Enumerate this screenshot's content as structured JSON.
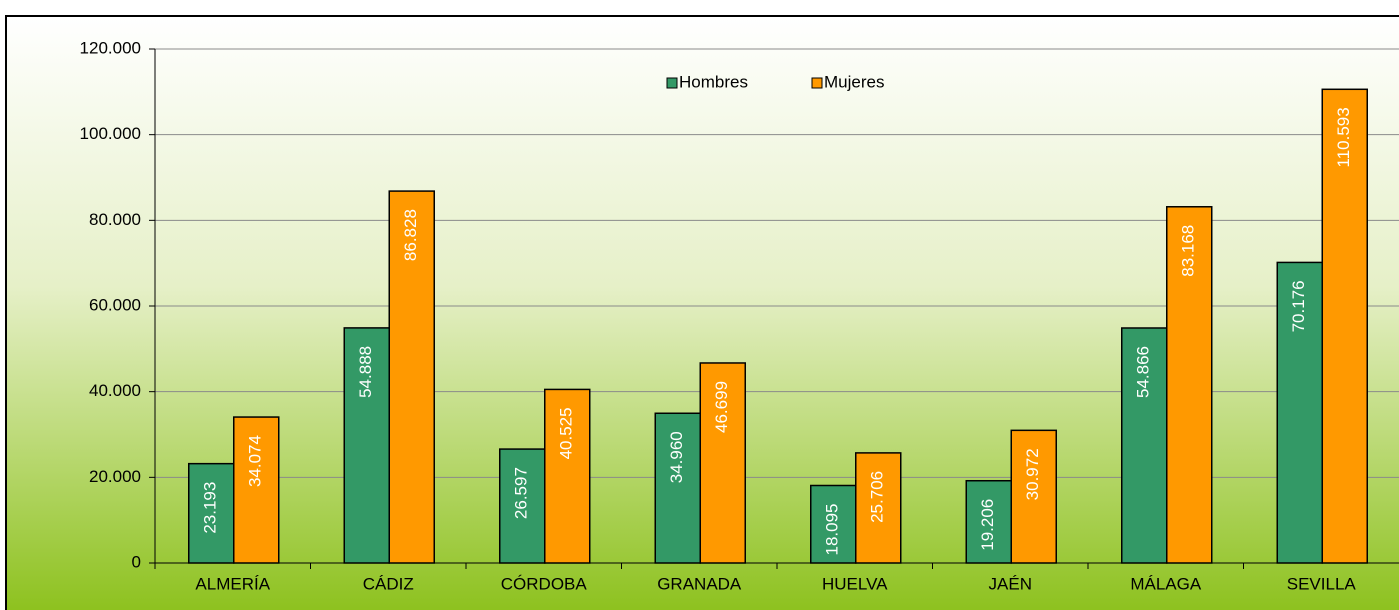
{
  "chart_data": {
    "type": "bar",
    "categories": [
      "ALMERÍA",
      "CÁDIZ",
      "CÓRDOBA",
      "GRANADA",
      "HUELVA",
      "JAÉN",
      "MÁLAGA",
      "SEVILLA"
    ],
    "series": [
      {
        "name": "Hombres",
        "color": "#339966",
        "values": [
          23193,
          54888,
          26597,
          34960,
          18095,
          19206,
          54866,
          70176
        ],
        "value_labels": [
          "23.193",
          "54.888",
          "26.597",
          "34.960",
          "18.095",
          "19.206",
          "54.866",
          "70.176"
        ]
      },
      {
        "name": "Mujeres",
        "color": "#ff9900",
        "values": [
          34074,
          86828,
          40525,
          46699,
          25706,
          30972,
          83168,
          110593
        ],
        "value_labels": [
          "34.074",
          "86.828",
          "40.525",
          "46.699",
          "25.706",
          "30.972",
          "83.168",
          "110.593"
        ]
      }
    ],
    "ylim": [
      0,
      120000
    ],
    "yticks": [
      0,
      {
        "value": 20000,
        "label": "20.000"
      },
      {
        "value": 40000,
        "label": "40.000"
      },
      {
        "value": 60000,
        "label": "60.000"
      },
      {
        "value": 80000,
        "label": "80.000"
      },
      {
        "value": 100000,
        "label": "100.000"
      },
      {
        "value": 120000,
        "label": "120.000"
      }
    ],
    "grid": true,
    "legend": "top"
  }
}
